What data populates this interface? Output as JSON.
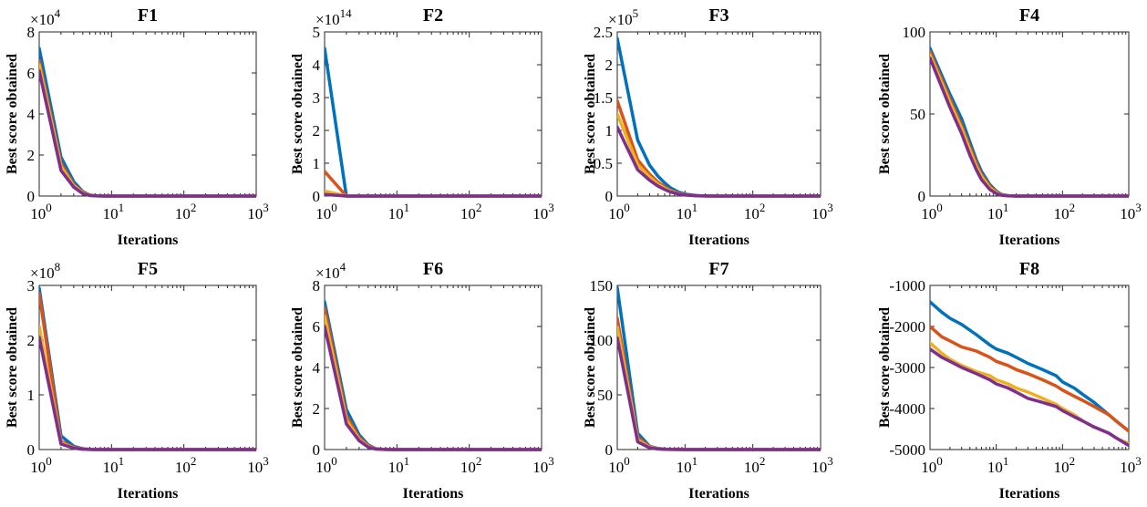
{
  "colors": {
    "series_1": "#0072BD",
    "series_2": "#D95319",
    "series_3": "#EDB120",
    "series_4": "#7E2F8E"
  },
  "chart_data": [
    {
      "type": "line",
      "title": "F1",
      "xlabel": "Iterations",
      "ylabel": "Best score obtained",
      "xscale": "log",
      "xlim": [
        1,
        1000
      ],
      "ylim": [
        0,
        80000
      ],
      "y_exponent": "×10^4",
      "x_ticks": [
        1,
        10,
        100,
        1000
      ],
      "x_tick_labels": [
        "10^0",
        "10^1",
        "10^2",
        "10^3"
      ],
      "y_ticks": [
        0,
        20000,
        40000,
        60000,
        80000
      ],
      "y_tick_labels": [
        "0",
        "2",
        "4",
        "6",
        "8"
      ],
      "series": [
        {
          "x": [
            1,
            2,
            3,
            4,
            5,
            6,
            8,
            10,
            1000
          ],
          "y": [
            72000,
            19000,
            7000,
            2200,
            500,
            150,
            30,
            0,
            0
          ]
        },
        {
          "x": [
            1,
            2,
            3,
            4,
            5,
            6,
            8,
            10,
            1000
          ],
          "y": [
            66000,
            16000,
            5500,
            1800,
            400,
            120,
            20,
            0,
            0
          ]
        },
        {
          "x": [
            1,
            2,
            3,
            4,
            5,
            6,
            8,
            10,
            1000
          ],
          "y": [
            64000,
            14500,
            5000,
            1500,
            300,
            100,
            20,
            0,
            0
          ]
        },
        {
          "x": [
            1,
            2,
            3,
            4,
            5,
            6,
            8,
            10,
            1000
          ],
          "y": [
            61000,
            12500,
            4300,
            1200,
            250,
            80,
            15,
            0,
            0
          ]
        }
      ]
    },
    {
      "type": "line",
      "title": "F2",
      "xlabel": "",
      "ylabel": "Best score obtained",
      "xscale": "log",
      "xlim": [
        1,
        1000
      ],
      "ylim": [
        0,
        500000000000000.0
      ],
      "y_exponent": "×10^14",
      "x_ticks": [
        1,
        10,
        100,
        1000
      ],
      "x_tick_labels": [
        "10^0",
        "10^1",
        "10^2",
        "10^3"
      ],
      "y_ticks": [
        0,
        100000000000000.0,
        200000000000000.0,
        300000000000000.0,
        400000000000000.0,
        500000000000000.0
      ],
      "y_tick_labels": [
        "0",
        "1",
        "2",
        "3",
        "4",
        "5"
      ],
      "series": [
        {
          "x": [
            1,
            2,
            1000
          ],
          "y": [
            450000000000000.0,
            0,
            0
          ]
        },
        {
          "x": [
            1,
            2,
            1000
          ],
          "y": [
            75000000000000.0,
            0,
            0
          ]
        },
        {
          "x": [
            1,
            2,
            1000
          ],
          "y": [
            15000000000000.0,
            0,
            0
          ]
        },
        {
          "x": [
            1,
            2,
            1000
          ],
          "y": [
            5000000000000.0,
            0,
            0
          ]
        }
      ]
    },
    {
      "type": "line",
      "title": "F3",
      "xlabel": "Iterations",
      "ylabel": "Best score obtained",
      "xscale": "log",
      "xlim": [
        1,
        1000
      ],
      "ylim": [
        0,
        250000
      ],
      "y_exponent": "×10^5",
      "x_ticks": [
        1,
        10,
        100,
        1000
      ],
      "x_tick_labels": [
        "10^0",
        "10^1",
        "10^2",
        "10^3"
      ],
      "y_ticks": [
        0,
        50000,
        100000,
        150000,
        200000,
        250000
      ],
      "y_tick_labels": [
        "0",
        "0.5",
        "1",
        "1.5",
        "2",
        "2.5"
      ],
      "series": [
        {
          "x": [
            1,
            2,
            3,
            4,
            5,
            6,
            8,
            10,
            15,
            20,
            30,
            1000
          ],
          "y": [
            240000,
            85000,
            47000,
            30000,
            20000,
            13000,
            6000,
            3000,
            800,
            200,
            0,
            0
          ]
        },
        {
          "x": [
            1,
            2,
            3,
            4,
            5,
            6,
            8,
            10,
            15,
            20,
            30,
            1000
          ],
          "y": [
            145000,
            55000,
            33000,
            21000,
            14000,
            9000,
            4000,
            2000,
            500,
            100,
            0,
            0
          ]
        },
        {
          "x": [
            1,
            2,
            3,
            4,
            5,
            6,
            8,
            10,
            15,
            20,
            30,
            1000
          ],
          "y": [
            125000,
            48000,
            29000,
            18000,
            12000,
            8000,
            3500,
            1800,
            450,
            100,
            0,
            0
          ]
        },
        {
          "x": [
            1,
            2,
            3,
            4,
            5,
            6,
            8,
            10,
            15,
            20,
            30,
            1000
          ],
          "y": [
            105000,
            40000,
            24000,
            15000,
            10000,
            6500,
            3000,
            1500,
            350,
            80,
            0,
            0
          ]
        }
      ]
    },
    {
      "type": "line",
      "title": "F4",
      "xlabel": "Iterations",
      "ylabel": "Best score obtained",
      "xscale": "log",
      "xlim": [
        1,
        1000
      ],
      "ylim": [
        0,
        100
      ],
      "y_exponent": "",
      "x_ticks": [
        1,
        10,
        100,
        1000
      ],
      "x_tick_labels": [
        "10^0",
        "10^1",
        "10^2",
        "10^3"
      ],
      "y_ticks": [
        0,
        50,
        100
      ],
      "y_tick_labels": [
        "0",
        "50",
        "100"
      ],
      "series": [
        {
          "x": [
            1,
            2,
            3,
            4,
            5,
            6,
            8,
            10,
            12,
            15,
            20,
            1000
          ],
          "y": [
            90,
            62,
            47,
            33,
            22,
            15,
            7,
            3,
            1,
            0.3,
            0,
            0
          ]
        },
        {
          "x": [
            1,
            2,
            3,
            4,
            5,
            6,
            8,
            10,
            12,
            15,
            20,
            1000
          ],
          "y": [
            88,
            59,
            43,
            30,
            20,
            13,
            6,
            2.5,
            0.8,
            0.2,
            0,
            0
          ]
        },
        {
          "x": [
            1,
            2,
            3,
            4,
            5,
            6,
            8,
            10,
            12,
            15,
            20,
            1000
          ],
          "y": [
            86,
            57,
            41,
            28,
            18,
            12,
            5,
            2,
            0.6,
            0.2,
            0,
            0
          ]
        },
        {
          "x": [
            1,
            2,
            3,
            4,
            5,
            6,
            8,
            10,
            12,
            15,
            20,
            1000
          ],
          "y": [
            84,
            54,
            38,
            25,
            16,
            10,
            4,
            1.5,
            0.5,
            0.1,
            0,
            0
          ]
        }
      ]
    },
    {
      "type": "line",
      "title": "F5",
      "xlabel": "Iterations",
      "ylabel": "Best score obtained",
      "xscale": "log",
      "xlim": [
        1,
        1000
      ],
      "ylim": [
        0,
        300000000
      ],
      "y_exponent": "×10^8",
      "x_ticks": [
        1,
        10,
        100,
        1000
      ],
      "x_tick_labels": [
        "10^0",
        "10^1",
        "10^2",
        "10^3"
      ],
      "y_ticks": [
        0,
        100000000,
        200000000,
        300000000
      ],
      "y_tick_labels": [
        "0",
        "1",
        "2",
        "3"
      ],
      "series": [
        {
          "x": [
            1,
            2,
            3,
            4,
            5,
            6,
            8,
            1000
          ],
          "y": [
            295000000,
            25000000,
            6000000,
            1500000,
            400000,
            100000,
            0,
            0
          ]
        },
        {
          "x": [
            1,
            2,
            3,
            4,
            5,
            6,
            8,
            1000
          ],
          "y": [
            285000000,
            15000000,
            4000000,
            1000000,
            300000,
            80000,
            0,
            0
          ]
        },
        {
          "x": [
            1,
            2,
            3,
            4,
            5,
            6,
            8,
            1000
          ],
          "y": [
            225000000,
            12000000,
            3000000,
            800000,
            200000,
            60000,
            0,
            0
          ]
        },
        {
          "x": [
            1,
            2,
            3,
            4,
            5,
            6,
            8,
            1000
          ],
          "y": [
            205000000,
            10000000,
            2500000,
            600000,
            150000,
            50000,
            0,
            0
          ]
        }
      ]
    },
    {
      "type": "line",
      "title": "F6",
      "xlabel": "Iterations",
      "ylabel": "Best score obtained",
      "xscale": "log",
      "xlim": [
        1,
        1000
      ],
      "ylim": [
        0,
        80000
      ],
      "y_exponent": "×10^4",
      "x_ticks": [
        1,
        10,
        100,
        1000
      ],
      "x_tick_labels": [
        "10^0",
        "10^1",
        "10^2",
        "10^3"
      ],
      "y_ticks": [
        0,
        20000,
        40000,
        60000,
        80000
      ],
      "y_tick_labels": [
        "0",
        "2",
        "4",
        "6",
        "8"
      ],
      "series": [
        {
          "x": [
            1,
            2,
            3,
            4,
            5,
            6,
            8,
            10,
            1000
          ],
          "y": [
            72000,
            19500,
            7200,
            2300,
            550,
            160,
            30,
            0,
            0
          ]
        },
        {
          "x": [
            1,
            2,
            3,
            4,
            5,
            6,
            8,
            10,
            1000
          ],
          "y": [
            69000,
            16500,
            5800,
            1900,
            420,
            120,
            20,
            0,
            0
          ]
        },
        {
          "x": [
            1,
            2,
            3,
            4,
            5,
            6,
            8,
            10,
            1000
          ],
          "y": [
            65000,
            14500,
            5000,
            1500,
            320,
            100,
            20,
            0,
            0
          ]
        },
        {
          "x": [
            1,
            2,
            3,
            4,
            5,
            6,
            8,
            10,
            1000
          ],
          "y": [
            60000,
            12500,
            4300,
            1200,
            250,
            80,
            15,
            0,
            0
          ]
        }
      ]
    },
    {
      "type": "line",
      "title": "F7",
      "xlabel": "Iterations",
      "ylabel": "Best score obtained",
      "xscale": "log",
      "xlim": [
        1,
        1000
      ],
      "ylim": [
        0,
        150
      ],
      "y_exponent": "",
      "x_ticks": [
        1,
        10,
        100,
        1000
      ],
      "x_tick_labels": [
        "10^0",
        "10^1",
        "10^2",
        "10^3"
      ],
      "y_ticks": [
        0,
        50,
        100,
        150
      ],
      "y_tick_labels": [
        "0",
        "50",
        "100",
        "150"
      ],
      "series": [
        {
          "x": [
            1,
            2,
            3,
            4,
            5,
            6,
            8,
            10,
            1000
          ],
          "y": [
            148,
            15,
            3,
            1,
            0.4,
            0.2,
            0.1,
            0,
            0
          ]
        },
        {
          "x": [
            1,
            2,
            3,
            4,
            5,
            6,
            8,
            10,
            1000
          ],
          "y": [
            120,
            11,
            2.5,
            0.8,
            0.3,
            0.15,
            0.1,
            0,
            0
          ]
        },
        {
          "x": [
            1,
            2,
            3,
            4,
            5,
            6,
            8,
            10,
            1000
          ],
          "y": [
            112,
            9,
            2,
            0.7,
            0.3,
            0.1,
            0.05,
            0,
            0
          ]
        },
        {
          "x": [
            1,
            2,
            3,
            4,
            5,
            6,
            8,
            10,
            1000
          ],
          "y": [
            102,
            7,
            1.5,
            0.5,
            0.2,
            0.1,
            0.05,
            0,
            0
          ]
        }
      ]
    },
    {
      "type": "line",
      "title": "F8",
      "xlabel": "Iterations",
      "ylabel": "Best score obtained",
      "xscale": "log",
      "xlim": [
        1,
        1000
      ],
      "ylim": [
        -5000,
        -1000
      ],
      "y_exponent": "",
      "x_ticks": [
        1,
        10,
        100,
        1000
      ],
      "x_tick_labels": [
        "10^0",
        "10^1",
        "10^2",
        "10^3"
      ],
      "y_ticks": [
        -5000,
        -4000,
        -3000,
        -2000,
        -1000
      ],
      "y_tick_labels": [
        "-5000",
        "-4000",
        "-3000",
        "-2000",
        "-1000"
      ],
      "series": [
        {
          "x": [
            1,
            1.5,
            2,
            3,
            5,
            8,
            10,
            15,
            20,
            30,
            50,
            80,
            100,
            150,
            200,
            300,
            500,
            700,
            1000
          ],
          "y": [
            -1400,
            -1650,
            -1800,
            -1950,
            -2200,
            -2450,
            -2550,
            -2650,
            -2750,
            -2900,
            -3050,
            -3200,
            -3350,
            -3500,
            -3650,
            -3850,
            -4150,
            -4350,
            -4550
          ]
        },
        {
          "x": [
            1,
            1.5,
            2,
            3,
            5,
            8,
            10,
            15,
            20,
            30,
            50,
            80,
            100,
            150,
            200,
            300,
            500,
            700,
            1000
          ],
          "y": [
            -2000,
            -2250,
            -2350,
            -2500,
            -2600,
            -2750,
            -2850,
            -2950,
            -3050,
            -3150,
            -3300,
            -3450,
            -3550,
            -3700,
            -3800,
            -3950,
            -4150,
            -4350,
            -4550
          ]
        },
        {
          "x": [
            1,
            1.5,
            2,
            3,
            5,
            8,
            10,
            15,
            20,
            30,
            50,
            80,
            100,
            150,
            200,
            300,
            500,
            700,
            1000
          ],
          "y": [
            -2400,
            -2650,
            -2800,
            -2950,
            -3100,
            -3200,
            -3300,
            -3400,
            -3500,
            -3600,
            -3750,
            -3900,
            -4000,
            -4150,
            -4300,
            -4450,
            -4600,
            -4750,
            -4850
          ]
        },
        {
          "x": [
            1,
            1.5,
            2,
            3,
            5,
            8,
            10,
            15,
            20,
            30,
            50,
            80,
            100,
            150,
            200,
            300,
            500,
            700,
            1000
          ],
          "y": [
            -2550,
            -2750,
            -2850,
            -3000,
            -3150,
            -3300,
            -3400,
            -3500,
            -3600,
            -3750,
            -3850,
            -3950,
            -4050,
            -4200,
            -4300,
            -4450,
            -4600,
            -4750,
            -4900
          ]
        }
      ]
    }
  ]
}
